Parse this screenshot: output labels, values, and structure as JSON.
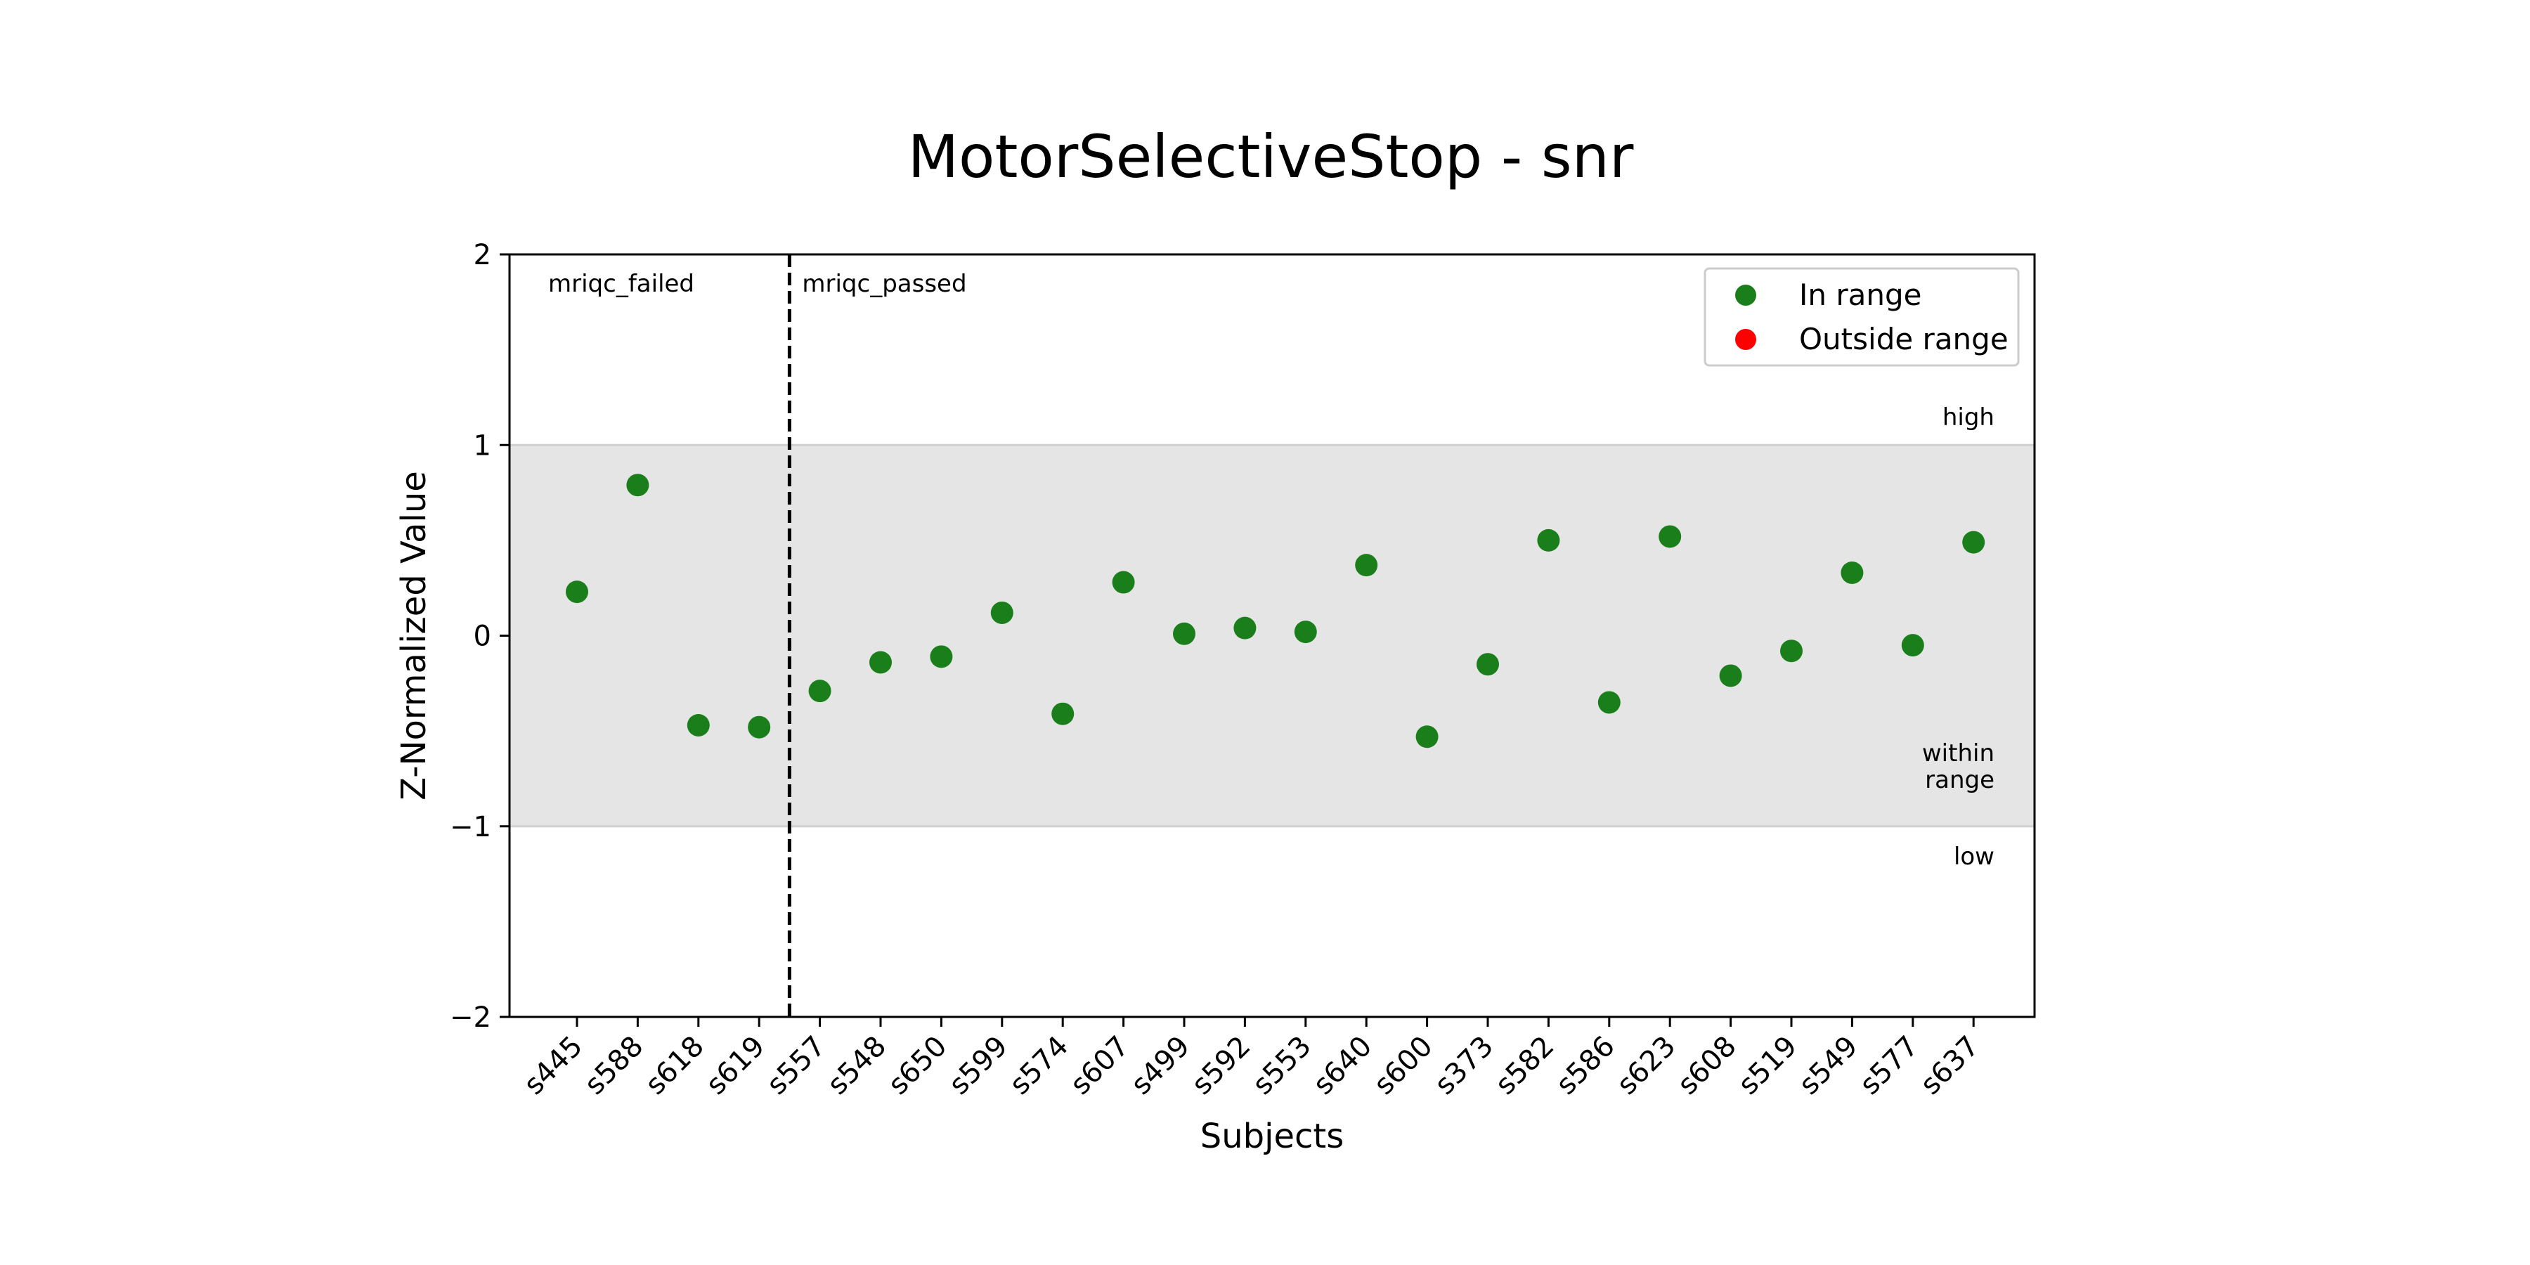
{
  "chart_data": {
    "type": "scatter",
    "title": "MotorSelectiveStop - snr",
    "xlabel": "Subjects",
    "ylabel": "Z-Normalized Value",
    "ylim": [
      -2,
      2
    ],
    "yticks": [
      2,
      1,
      0,
      -1,
      -2
    ],
    "ytick_labels": [
      "2",
      "1",
      "0",
      "−1",
      "−2"
    ],
    "grid": false,
    "categories": [
      "s445",
      "s588",
      "s618",
      "s619",
      "s557",
      "s548",
      "s650",
      "s599",
      "s574",
      "s607",
      "s499",
      "s592",
      "s553",
      "s640",
      "s600",
      "s373",
      "s582",
      "s586",
      "s623",
      "s608",
      "s519",
      "s549",
      "s577",
      "s637"
    ],
    "series": [
      {
        "name": "In range",
        "color": "#1a7f1a",
        "values": [
          0.23,
          0.79,
          -0.47,
          -0.48,
          -0.29,
          -0.14,
          -0.11,
          0.12,
          -0.41,
          0.28,
          0.01,
          0.04,
          0.02,
          0.37,
          -0.53,
          -0.15,
          0.5,
          -0.35,
          0.52,
          -0.21,
          -0.08,
          0.33,
          -0.05,
          0.49
        ]
      },
      {
        "name": "Outside range",
        "color": "#ff0000",
        "values": []
      }
    ],
    "band": {
      "low": -1,
      "high": 1,
      "color": "#e5e5e5",
      "line_color": "#d0d0d0"
    },
    "divider_after_index": 3,
    "group_labels": [
      "mriqc_failed",
      "mriqc_passed"
    ],
    "band_labels": {
      "high": "high",
      "within": [
        "within",
        "range"
      ],
      "low": "low"
    },
    "legend_position": "top-right"
  }
}
